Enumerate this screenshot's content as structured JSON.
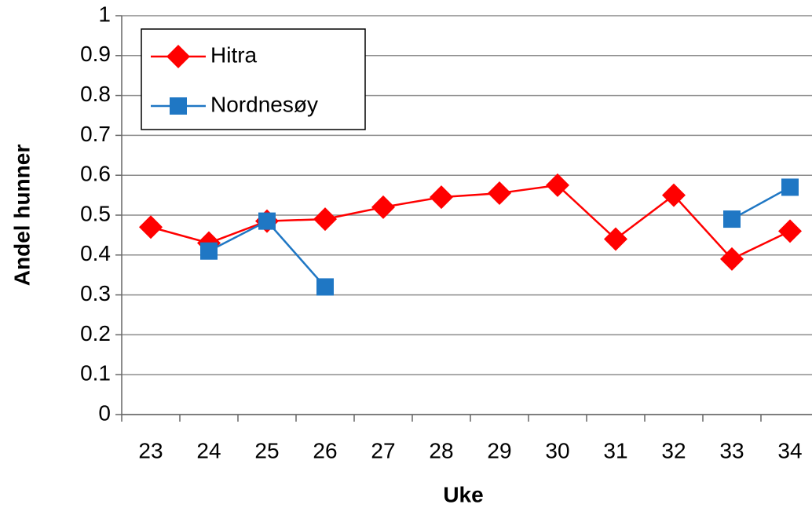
{
  "chart_data": {
    "type": "line",
    "x_label": "Uke",
    "y_label": "Andel hunner",
    "categories": [
      "23",
      "24",
      "25",
      "26",
      "27",
      "28",
      "29",
      "30",
      "31",
      "32",
      "33",
      "34"
    ],
    "series": [
      {
        "name": "Hitra",
        "color": "#ff0000",
        "marker": "diamond",
        "values": [
          0.47,
          0.43,
          0.485,
          0.49,
          0.52,
          0.545,
          0.555,
          0.575,
          0.44,
          0.55,
          0.39,
          0.46
        ]
      },
      {
        "name": "Nordnesøy",
        "color": "#1f77c4",
        "marker": "square",
        "values": [
          null,
          0.41,
          0.485,
          0.32,
          null,
          null,
          null,
          null,
          null,
          null,
          0.49,
          0.57
        ]
      }
    ],
    "ylim": [
      0,
      1
    ],
    "yticks": [
      0,
      0.1,
      0.2,
      0.3,
      0.4,
      0.5,
      0.6,
      0.7,
      0.8,
      0.9,
      1
    ],
    "grid": true,
    "legend": "upper-left"
  }
}
